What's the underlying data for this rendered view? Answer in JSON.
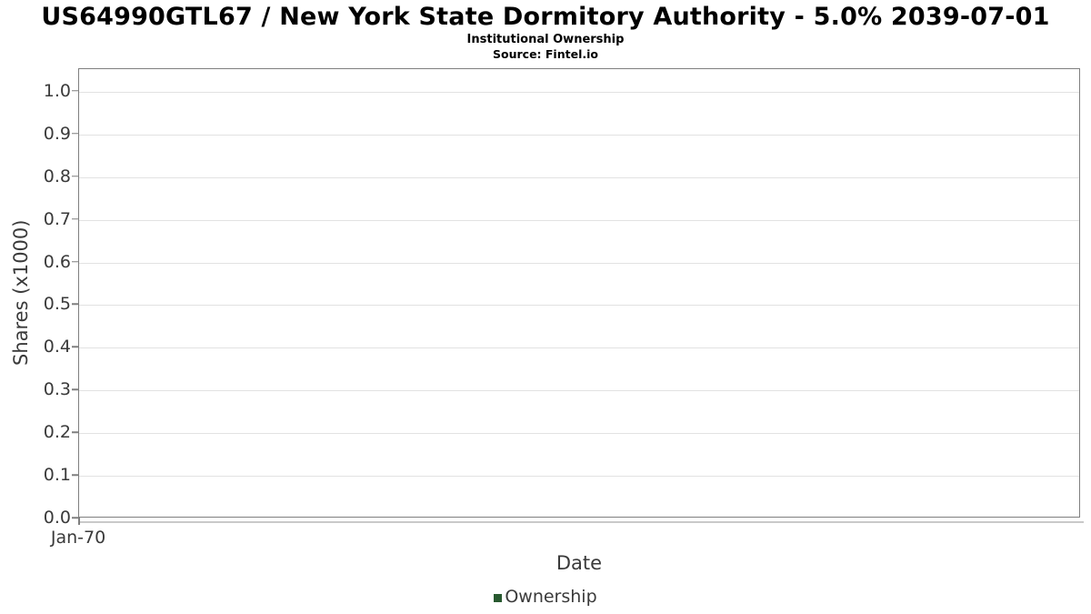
{
  "header": {
    "title": "US64990GTL67 / New York State Dormitory Authority - 5.0% 2039-07-01",
    "subtitle": "Institutional Ownership",
    "source": "Source: Fintel.io"
  },
  "chart_data": {
    "type": "line",
    "title": "US64990GTL67 / New York State Dormitory Authority - 5.0% 2039-07-01",
    "subtitle": "Institutional Ownership",
    "source": "Source: Fintel.io",
    "xlabel": "Date",
    "ylabel": "Shares (x1000)",
    "ylim": [
      0.0,
      1.053
    ],
    "y_ticks": [
      "1.0",
      "0.9",
      "0.8",
      "0.7",
      "0.6",
      "0.5",
      "0.4",
      "0.3",
      "0.2",
      "0.1",
      "0.0"
    ],
    "x_ticks": [
      "Jan-70"
    ],
    "grid": true,
    "legend": {
      "position": "bottom",
      "entries": [
        {
          "label": "Ownership",
          "color": "#28592f"
        }
      ]
    },
    "series": [
      {
        "name": "Ownership",
        "color": "#28592f",
        "x": [],
        "values": []
      }
    ]
  },
  "colors": {
    "border": "#7f7f7f",
    "grid": "#e2e2e2",
    "axis_light": "#c9c9c9",
    "text": "#3a3a3a",
    "title": "#000000",
    "legend_green": "#28592f"
  }
}
